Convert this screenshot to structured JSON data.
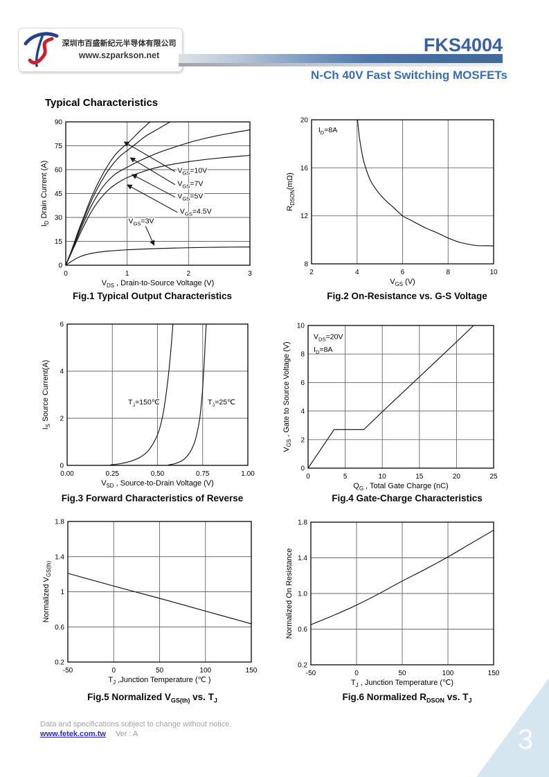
{
  "page": {
    "number": "3"
  },
  "header": {
    "logo": {
      "company_cn": "深圳市百盛新纪元半导体有限公司",
      "website": "www.szparkson.net"
    },
    "part_number": "FKS4004",
    "subtitle": "N-Ch 40V Fast Switching MOSFETs"
  },
  "section_title": "Typical Characteristics",
  "footer": {
    "notice": "Data and specifications subject to change without notice.",
    "link": "www.fetek.com.tw",
    "version": "Ver : A"
  },
  "colors": {
    "accent_blue": "#3a5fa6",
    "subtitle_blue": "#3b6cb4",
    "bar_blue": "#44699b",
    "triangle_blue": "#d5e6f0",
    "footer_gray": "#a3a3a3",
    "link_blue": "#2a2ac8",
    "curve_black": "#1a1a1a",
    "grid_gray": "#666666"
  },
  "chart_data": [
    {
      "id": "fig1",
      "type": "line",
      "caption": "Fig.1 Typical Output Characteristics",
      "xlabel": "V_{DS} , Drain-to-Source Voltage (V)",
      "ylabel": "I_{D} Drain Current (A)",
      "xlim": [
        0,
        3
      ],
      "ylim": [
        0,
        90
      ],
      "xticks": [
        0,
        1,
        2,
        3
      ],
      "xtick_labels": [
        "0",
        "1",
        "2",
        "3"
      ],
      "yticks": [
        0,
        15,
        30,
        45,
        60,
        75,
        90
      ],
      "ytick_labels": [
        "0",
        "15",
        "30",
        "45",
        "60",
        "75",
        "90"
      ],
      "grid_x": [
        1,
        2
      ],
      "grid_y": [
        15,
        30,
        45,
        60,
        75
      ],
      "series": [
        {
          "name": "VGS=10V",
          "smooth": true,
          "points": [
            [
              0,
              0
            ],
            [
              0.1,
              10
            ],
            [
              0.2,
              21
            ],
            [
              0.3,
              31
            ],
            [
              0.4,
              41
            ],
            [
              0.5,
              49.5
            ],
            [
              0.6,
              57
            ],
            [
              0.7,
              63.5
            ],
            [
              0.8,
              69
            ],
            [
              0.9,
              73
            ],
            [
              1.0,
              76.5
            ],
            [
              1.1,
              80
            ],
            [
              1.2,
              84
            ],
            [
              1.3,
              87.5
            ],
            [
              1.37,
              90
            ]
          ]
        },
        {
          "name": "VGS=7V",
          "smooth": true,
          "points": [
            [
              0,
              0
            ],
            [
              0.1,
              9.5
            ],
            [
              0.2,
              20
            ],
            [
              0.3,
              29.5
            ],
            [
              0.4,
              39
            ],
            [
              0.5,
              47
            ],
            [
              0.6,
              54
            ],
            [
              0.7,
              60
            ],
            [
              0.8,
              65
            ],
            [
              0.9,
              69
            ],
            [
              1.0,
              72
            ],
            [
              1.15,
              76.5
            ],
            [
              1.3,
              81
            ],
            [
              1.5,
              85.5
            ],
            [
              1.7,
              90
            ]
          ]
        },
        {
          "name": "VGS=5V",
          "smooth": true,
          "points": [
            [
              0,
              0
            ],
            [
              0.1,
              9
            ],
            [
              0.2,
              18.5
            ],
            [
              0.3,
              27.5
            ],
            [
              0.4,
              36
            ],
            [
              0.5,
              43
            ],
            [
              0.6,
              49
            ],
            [
              0.7,
              53.5
            ],
            [
              0.8,
              57
            ],
            [
              0.9,
              59.5
            ],
            [
              1.0,
              61.5
            ],
            [
              1.2,
              65.5
            ],
            [
              1.5,
              70.5
            ],
            [
              1.8,
              74.5
            ],
            [
              2.1,
              78
            ],
            [
              2.4,
              80.8
            ],
            [
              2.7,
              83
            ],
            [
              3,
              85
            ]
          ]
        },
        {
          "name": "VGS=4.5V",
          "smooth": true,
          "points": [
            [
              0,
              0
            ],
            [
              0.1,
              8.5
            ],
            [
              0.2,
              17
            ],
            [
              0.3,
              25
            ],
            [
              0.4,
              32.5
            ],
            [
              0.5,
              38.5
            ],
            [
              0.6,
              43.5
            ],
            [
              0.7,
              47.5
            ],
            [
              0.8,
              50.5
            ],
            [
              0.9,
              53
            ],
            [
              1.0,
              55
            ],
            [
              1.2,
              58
            ],
            [
              1.5,
              61.5
            ],
            [
              2,
              65
            ],
            [
              2.5,
              67.3
            ],
            [
              3,
              69
            ]
          ]
        },
        {
          "name": "VGS=3V",
          "smooth": true,
          "points": [
            [
              0,
              0
            ],
            [
              0.1,
              2.6
            ],
            [
              0.2,
              4.8
            ],
            [
              0.3,
              6.3
            ],
            [
              0.4,
              7.3
            ],
            [
              0.5,
              8.0
            ],
            [
              0.7,
              8.9
            ],
            [
              1.0,
              9.7
            ],
            [
              1.3,
              10.2
            ],
            [
              1.6,
              10.6
            ],
            [
              2.0,
              11.0
            ],
            [
              2.5,
              11.3
            ],
            [
              3.0,
              11.5
            ]
          ]
        }
      ],
      "curve_labels": [
        {
          "text": "V_{GS}=10V",
          "x": 1.82,
          "y": 58.0,
          "arrow_from": [
            1.78,
            58.8
          ],
          "arrow_to": [
            0.95,
            77.5
          ]
        },
        {
          "text": "V_{GS}=7V",
          "x": 1.82,
          "y": 49.8,
          "arrow_from": [
            1.78,
            50.6
          ],
          "arrow_to": [
            1.05,
            67.5
          ]
        },
        {
          "text": "V_{GS}=5V",
          "x": 1.82,
          "y": 42.0,
          "arrow_from": [
            1.78,
            42.8
          ],
          "arrow_to": [
            1.08,
            57.0
          ]
        },
        {
          "text": "V_{GS}=4.5V",
          "x": 1.86,
          "y": 32.4,
          "arrow_from": [
            1.82,
            33.2
          ],
          "arrow_to": [
            1.0,
            50.5
          ]
        },
        {
          "text": "V_{GS}=3V",
          "x": 1.02,
          "y": 26.3,
          "arrow_from": [
            1.3,
            24.5
          ],
          "arrow_to": [
            1.44,
            12.5
          ]
        }
      ],
      "annotations": []
    },
    {
      "id": "fig2",
      "type": "line",
      "caption": "Fig.2 On-Resistance vs. G-S Voltage",
      "xlabel": "V_{GS} (V)",
      "ylabel": "R_{DSON}(mΩ)",
      "xlim": [
        2,
        10
      ],
      "ylim": [
        8,
        20
      ],
      "xticks": [
        2,
        4,
        6,
        8,
        10
      ],
      "xtick_labels": [
        "2",
        "4",
        "6",
        "8",
        "10"
      ],
      "yticks": [
        8,
        12,
        16,
        20
      ],
      "ytick_labels": [
        "8",
        "12",
        "16",
        "20"
      ],
      "grid_x": [
        4,
        6,
        8
      ],
      "grid_y": [
        12,
        16
      ],
      "series": [
        {
          "name": "RDSON",
          "smooth": true,
          "points": [
            [
              4.02,
              20
            ],
            [
              4.1,
              18.6
            ],
            [
              4.2,
              17.4
            ],
            [
              4.3,
              16.5
            ],
            [
              4.45,
              15.6
            ],
            [
              4.6,
              14.9
            ],
            [
              4.8,
              14.3
            ],
            [
              5.0,
              13.8
            ],
            [
              5.3,
              13.2
            ],
            [
              5.6,
              12.7
            ],
            [
              6.0,
              12.0
            ],
            [
              6.4,
              11.6
            ],
            [
              7.0,
              11.0
            ],
            [
              7.5,
              10.6
            ],
            [
              8.0,
              10.15
            ],
            [
              8.5,
              9.8
            ],
            [
              9.0,
              9.6
            ],
            [
              9.3,
              9.52
            ],
            [
              10,
              9.5
            ]
          ]
        }
      ],
      "curve_labels": [],
      "annotations": [
        {
          "text": "I_{D}=8A",
          "x": 2.3,
          "y": 18.95
        }
      ]
    },
    {
      "id": "fig3",
      "type": "line",
      "caption": "Fig.3 Forward Characteristics of Reverse",
      "xlabel": "V_{SD} , Source-to-Drain Voltage (V)",
      "ylabel": "I_{S} Source Current(A)",
      "xlim": [
        0,
        1
      ],
      "ylim": [
        0,
        6
      ],
      "xticks": [
        0,
        0.25,
        0.5,
        0.75,
        1
      ],
      "xtick_labels": [
        "0.00",
        "0.25",
        "0.50",
        "0.75",
        "1.00"
      ],
      "yticks": [
        0,
        2,
        4,
        6
      ],
      "ytick_labels": [
        "0",
        "2",
        "4",
        "6"
      ],
      "grid_x": [
        0.25,
        0.5,
        0.75
      ],
      "grid_y": [
        2,
        4
      ],
      "series": [
        {
          "name": "TJ=150C",
          "smooth": true,
          "points": [
            [
              0.24,
              0.02
            ],
            [
              0.3,
              0.08
            ],
            [
              0.35,
              0.17
            ],
            [
              0.4,
              0.33
            ],
            [
              0.44,
              0.55
            ],
            [
              0.47,
              0.85
            ],
            [
              0.5,
              1.3
            ],
            [
              0.52,
              1.8
            ],
            [
              0.54,
              2.6
            ],
            [
              0.56,
              3.8
            ],
            [
              0.575,
              5.0
            ],
            [
              0.585,
              6.0
            ]
          ]
        },
        {
          "name": "TJ=25C",
          "smooth": true,
          "points": [
            [
              0.56,
              0.02
            ],
            [
              0.6,
              0.08
            ],
            [
              0.64,
              0.22
            ],
            [
              0.67,
              0.45
            ],
            [
              0.69,
              0.7
            ],
            [
              0.71,
              1.1
            ],
            [
              0.73,
              1.8
            ],
            [
              0.74,
              2.4
            ],
            [
              0.75,
              3.3
            ],
            [
              0.76,
              4.6
            ],
            [
              0.765,
              5.4
            ],
            [
              0.77,
              6.0
            ]
          ]
        }
      ],
      "curve_labels": [
        {
          "text": "T_{J}=150℃",
          "x": 0.337,
          "y": 2.59
        },
        {
          "text": "T_{J}=25℃",
          "x": 0.778,
          "y": 2.59
        }
      ],
      "annotations": []
    },
    {
      "id": "fig4",
      "type": "line",
      "caption": "Fig.4 Gate-Charge Characteristics",
      "xlabel": "Q_{G} , Total Gate Charge (nC)",
      "ylabel": "V_{GS} , Gate to Source Voltage (V)",
      "xlim": [
        0,
        25
      ],
      "ylim": [
        0,
        10
      ],
      "xticks": [
        0,
        5,
        10,
        15,
        20,
        25
      ],
      "xtick_labels": [
        "0",
        "5",
        "10",
        "15",
        "20",
        "25"
      ],
      "yticks": [
        0,
        2,
        4,
        6,
        8,
        10
      ],
      "ytick_labels": [
        "0",
        "2",
        "4",
        "6",
        "8",
        "10"
      ],
      "grid_x": [
        5,
        10,
        15,
        20
      ],
      "grid_y": [
        2,
        4,
        6,
        8
      ],
      "series": [
        {
          "name": "gate charge",
          "smooth": false,
          "points": [
            [
              0,
              0
            ],
            [
              3.5,
              2.7
            ],
            [
              7.5,
              2.7
            ],
            [
              10,
              3.95
            ],
            [
              15,
              6.4
            ],
            [
              20,
              8.85
            ],
            [
              22.3,
              10
            ]
          ]
        }
      ],
      "curve_labels": [],
      "annotations": [
        {
          "text": "V_{DS}=20V",
          "x": 0.75,
          "y": 9.05
        },
        {
          "text": "I_{D}=8A",
          "x": 0.75,
          "y": 8.16
        }
      ]
    },
    {
      "id": "fig5",
      "type": "line",
      "caption": "Fig.5 Normalized V_{GS(th)} vs. T_{J}",
      "xlabel": "T_{J} ,Junction Temperature (℃ )",
      "ylabel": "Normalized V_{GS(th)}",
      "xlim": [
        -50,
        150
      ],
      "ylim": [
        0.2,
        1.8
      ],
      "xticks": [
        -50,
        0,
        50,
        100,
        150
      ],
      "xtick_labels": [
        "-50",
        "0",
        "50",
        "100",
        "150"
      ],
      "yticks": [
        0.2,
        0.6,
        1,
        1.4,
        1.8
      ],
      "ytick_labels": [
        "0.2",
        "0.6",
        "1",
        "1.4",
        "1.8"
      ],
      "grid_x": [
        0,
        50,
        100
      ],
      "grid_y": [
        0.6,
        1,
        1.4
      ],
      "series": [
        {
          "name": "normalized VGS(th)",
          "smooth": true,
          "points": [
            [
              -50,
              1.21
            ],
            [
              0,
              1.065
            ],
            [
              50,
              0.925
            ],
            [
              100,
              0.78
            ],
            [
              150,
              0.635
            ]
          ]
        }
      ],
      "curve_labels": [],
      "annotations": []
    },
    {
      "id": "fig6",
      "type": "line",
      "caption": "Fig.6 Normalized R_{DSON} vs. T_{J}",
      "xlabel": "T_{J} , Junction Temperature (℃)",
      "ylabel": "Normalized On Resistance",
      "xlim": [
        -50,
        150
      ],
      "ylim": [
        0.2,
        1.8
      ],
      "xticks": [
        -50,
        0,
        50,
        100,
        150
      ],
      "xtick_labels": [
        "-50",
        "0",
        "50",
        "100",
        "150"
      ],
      "yticks": [
        0.2,
        0.6,
        1.0,
        1.4,
        1.8
      ],
      "ytick_labels": [
        "0.2",
        "0.6",
        "1.0",
        "1.4",
        "1.8"
      ],
      "grid_x": [
        0,
        50,
        100
      ],
      "grid_y": [
        0.6,
        1.0,
        1.4
      ],
      "series": [
        {
          "name": "normalized RDSON",
          "smooth": true,
          "points": [
            [
              -50,
              0.65
            ],
            [
              -25,
              0.755
            ],
            [
              0,
              0.87
            ],
            [
              25,
              1.0
            ],
            [
              50,
              1.14
            ],
            [
              75,
              1.27
            ],
            [
              100,
              1.41
            ],
            [
              125,
              1.56
            ],
            [
              150,
              1.71
            ]
          ]
        }
      ],
      "curve_labels": [],
      "annotations": []
    }
  ]
}
